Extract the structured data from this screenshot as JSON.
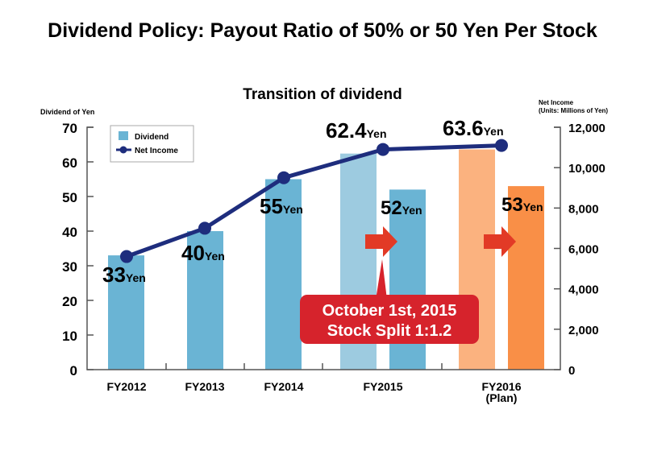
{
  "title": "Dividend Policy: Payout Ratio of 50% or 50 Yen Per Stock",
  "chart_data": {
    "type": "bar",
    "title": "Transition of dividend",
    "ylabel": "Dividend of Yen",
    "y2label_line1": "Net Income",
    "y2label_line2": "(Units: Millions of Yen)",
    "ylim": [
      0,
      70
    ],
    "y2lim": [
      0,
      12000
    ],
    "yticks": [
      0,
      10,
      20,
      30,
      40,
      50,
      60,
      70
    ],
    "y2ticks": [
      "0",
      "2,000",
      "4,000",
      "6,000",
      "8,000",
      "10,000",
      "12,000"
    ],
    "categories": [
      "FY2012",
      "FY2013",
      "FY2014",
      "FY2015",
      "FY2016"
    ],
    "category_sublabels": [
      "",
      "",
      "",
      "",
      "(Plan)"
    ],
    "legend": {
      "placement": "top-left",
      "dividend": "Dividend",
      "net_income": "Net Income"
    },
    "dividend_bars": [
      {
        "category": "FY2012",
        "value": 33,
        "label": "33",
        "color": "#6ab4d4"
      },
      {
        "category": "FY2013",
        "value": 40,
        "label": "40",
        "color": "#6ab4d4"
      },
      {
        "category": "FY2014",
        "value": 55,
        "label": "55",
        "color": "#6ab4d4"
      },
      {
        "category": "FY2015",
        "value": 62.4,
        "label": "62.4",
        "color": "#9dcbe0",
        "pre_split": true
      },
      {
        "category": "FY2015",
        "value": 52,
        "label": "52",
        "color": "#6ab4d4"
      },
      {
        "category": "FY2016",
        "value": 63.6,
        "label": "63.6",
        "color": "#fbb27f",
        "pre_split": true
      },
      {
        "category": "FY2016",
        "value": 53,
        "label": "53",
        "color": "#f98f47"
      }
    ],
    "unit": "Yen",
    "net_income": {
      "name": "Net Income",
      "color": "#1e2d7d",
      "values": [
        5600,
        7000,
        9500,
        10900,
        11100
      ]
    },
    "annotation": {
      "line1": "October 1st, 2015",
      "line2": "Stock Split 1:1.2",
      "color": "#d6232c"
    },
    "arrow_color": "#e23a26",
    "grid": false
  }
}
